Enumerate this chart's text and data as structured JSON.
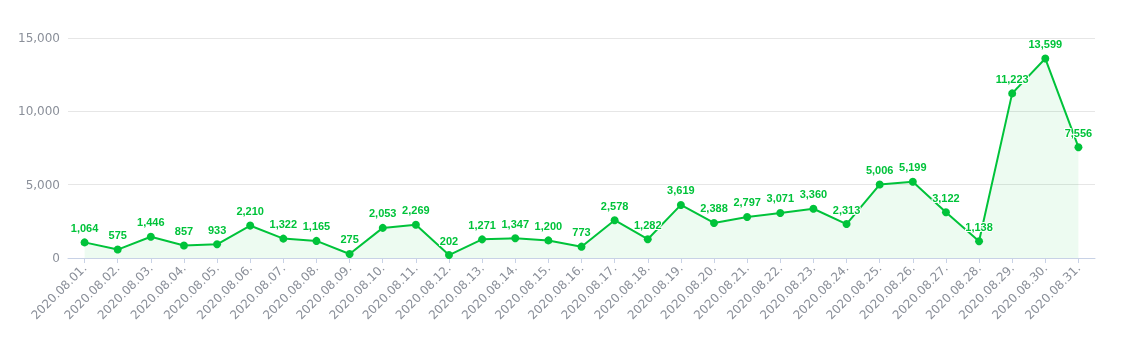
{
  "chart_data": {
    "type": "area",
    "categories": [
      "2020.08.01.",
      "2020.08.02.",
      "2020.08.03.",
      "2020.08.04.",
      "2020.08.05.",
      "2020.08.06.",
      "2020.08.07.",
      "2020.08.08.",
      "2020.08.09.",
      "2020.08.10.",
      "2020.08.11.",
      "2020.08.12.",
      "2020.08.13.",
      "2020.08.14.",
      "2020.08.15.",
      "2020.08.16.",
      "2020.08.17.",
      "2020.08.18.",
      "2020.08.19.",
      "2020.08.20.",
      "2020.08.21.",
      "2020.08.22.",
      "2020.08.23.",
      "2020.08.24.",
      "2020.08.25.",
      "2020.08.26.",
      "2020.08.27.",
      "2020.08.28.",
      "2020.08.29.",
      "2020.08.30.",
      "2020.08.31."
    ],
    "series": [
      {
        "color": "#00c33a",
        "values": [
          1064,
          575,
          1446,
          857,
          933,
          2210,
          1322,
          1165,
          275,
          2053,
          2269,
          202,
          1271,
          1347,
          1200,
          773,
          2578,
          1282,
          3619,
          2388,
          2797,
          3071,
          3360,
          2313,
          5006,
          5199,
          3122,
          1138,
          11223,
          13599,
          7556
        ],
        "value_labels": [
          "1,064",
          "575",
          "1,446",
          "857",
          "933",
          "2,210",
          "1,322",
          "1,165",
          "275",
          "2,053",
          "2,269",
          "202",
          "1,271",
          "1,347",
          "1,200",
          "773",
          "2,578",
          "1,282",
          "3,619",
          "2,388",
          "2,797",
          "3,071",
          "3,360",
          "2,313",
          "5,006",
          "5,199",
          "3,122",
          "1,138",
          "11,223",
          "13,599",
          "7,556"
        ]
      }
    ],
    "ylim": [
      0,
      15000
    ],
    "yticks": [
      {
        "value": 0,
        "label": "0"
      },
      {
        "value": 5000,
        "label": "5,000"
      },
      {
        "value": 10000,
        "label": "10,000"
      },
      {
        "value": 15000,
        "label": "15,000"
      }
    ],
    "grid": "y",
    "marker": "circle",
    "line_style": "solid"
  }
}
